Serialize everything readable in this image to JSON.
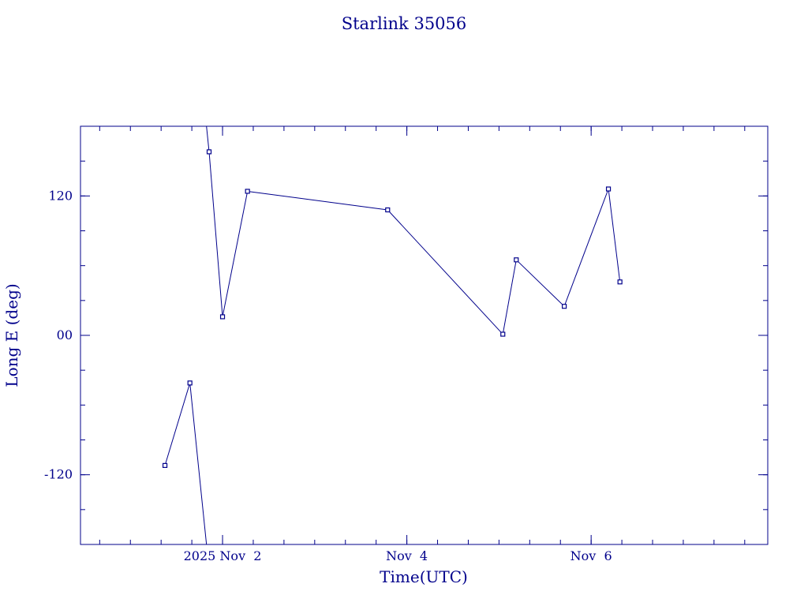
{
  "chart_data": {
    "type": "line",
    "title": "Starlink 35056",
    "xlabel": "Time(UTC)",
    "ylabel": "Long E (deg)",
    "colors": {
      "axis": "#00008b",
      "series": "#00008b",
      "background": "#ffffff"
    },
    "x_axis": {
      "min": "2025-10-31T11:00",
      "max": "2025-11-07T22:00",
      "major_ticks": [
        {
          "x": "2025-11-02T00:00",
          "label": "2025 Nov  2"
        },
        {
          "x": "2025-11-04T00:00",
          "label": "Nov  4"
        },
        {
          "x": "2025-11-06T00:00",
          "label": "Nov  6"
        }
      ],
      "minor_tick_hours": 8
    },
    "y_axis": {
      "min": -180,
      "max": 180,
      "major_ticks": [
        {
          "y": 120,
          "label": "120"
        },
        {
          "y": 0,
          "label": "00"
        },
        {
          "y": -120,
          "label": "-120"
        }
      ],
      "minor_step": 30,
      "wraps": true
    },
    "grid": false,
    "legend": "none",
    "series": [
      {
        "points": [
          {
            "x": "2025-11-01T09:00",
            "y": -112
          },
          {
            "x": "2025-11-01T15:30",
            "y": -41
          },
          {
            "x": "2025-11-01T20:30",
            "y": 158
          },
          {
            "x": "2025-11-02T00:00",
            "y": 16
          },
          {
            "x": "2025-11-02T06:30",
            "y": 124
          },
          {
            "x": "2025-11-03T19:00",
            "y": 108
          },
          {
            "x": "2025-11-05T01:00",
            "y": 1
          },
          {
            "x": "2025-11-05T04:30",
            "y": 65
          },
          {
            "x": "2025-11-05T17:00",
            "y": 25
          },
          {
            "x": "2025-11-06T04:30",
            "y": 126
          },
          {
            "x": "2025-11-06T07:30",
            "y": 46
          }
        ]
      }
    ]
  }
}
